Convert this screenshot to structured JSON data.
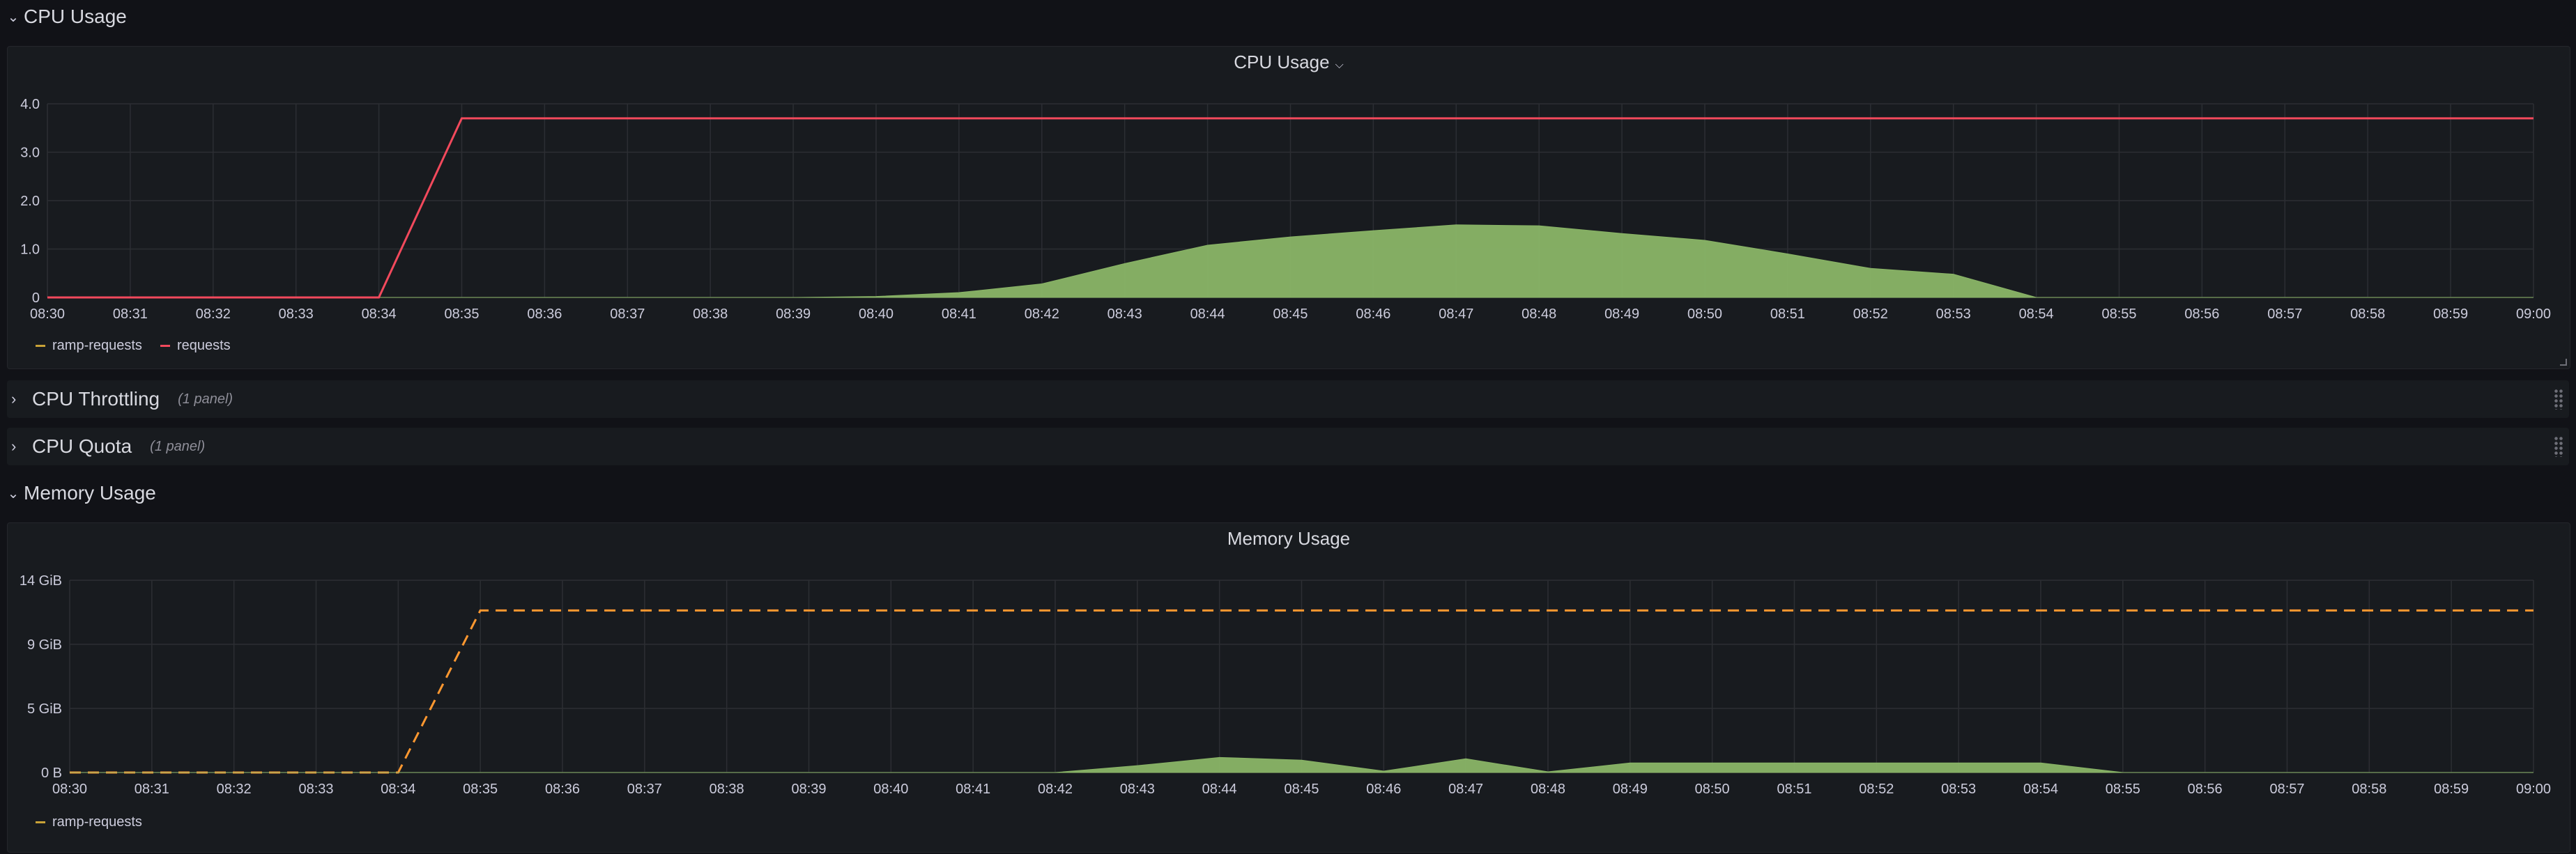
{
  "rows": {
    "cpu_usage": {
      "title": "CPU Usage",
      "chevron": "chevron-down-icon"
    },
    "cpu_throttling": {
      "title": "CPU Throttling",
      "count": "(1 panel)",
      "chevron": "chevron-right-icon"
    },
    "cpu_quota": {
      "title": "CPU Quota",
      "count": "(1 panel)",
      "chevron": "chevron-right-icon"
    },
    "memory_usage": {
      "title": "Memory Usage",
      "chevron": "chevron-down-icon"
    }
  },
  "panels": {
    "cpu": {
      "title": "CPU Usage",
      "menu_icon": "chevron-down-icon"
    },
    "memory": {
      "title": "Memory Usage"
    }
  },
  "colors": {
    "background": "#111217",
    "panel": "#181b1f",
    "grid": "#2c2e33",
    "requests_line": "#f2495c",
    "ramp_area": "#8ab567",
    "memory_requests": "#ff9830",
    "legend_ramp": "#c8a237"
  },
  "chart_data": [
    {
      "type": "area",
      "title": "CPU Usage",
      "x": [
        "08:30",
        "08:31",
        "08:32",
        "08:33",
        "08:34",
        "08:35",
        "08:36",
        "08:37",
        "08:38",
        "08:39",
        "08:40",
        "08:41",
        "08:42",
        "08:43",
        "08:44",
        "08:45",
        "08:46",
        "08:47",
        "08:48",
        "08:49",
        "08:50",
        "08:51",
        "08:52",
        "08:53",
        "08:54",
        "08:55",
        "08:56",
        "08:57",
        "08:58",
        "08:59",
        "09:00"
      ],
      "yticks": [
        "0",
        "1.0",
        "2.0",
        "3.0",
        "4.0"
      ],
      "ylim": [
        0,
        4
      ],
      "grid": true,
      "legend_position": "bottom-left",
      "series": [
        {
          "name": "ramp-requests",
          "style": "area",
          "color": "#8ab567",
          "values": [
            0,
            0,
            0,
            0,
            0,
            0,
            0,
            0,
            0,
            0,
            0.02,
            0.1,
            0.28,
            0.7,
            1.08,
            1.25,
            1.38,
            1.5,
            1.48,
            1.32,
            1.18,
            0.9,
            0.6,
            0.48,
            0,
            0,
            0,
            0,
            0,
            0,
            0
          ]
        },
        {
          "name": "requests",
          "style": "line",
          "color": "#f2495c",
          "values": [
            0,
            0,
            0,
            0,
            0,
            3.7,
            3.7,
            3.7,
            3.7,
            3.7,
            3.7,
            3.7,
            3.7,
            3.7,
            3.7,
            3.7,
            3.7,
            3.7,
            3.7,
            3.7,
            3.7,
            3.7,
            3.7,
            3.7,
            3.7,
            3.7,
            3.7,
            3.7,
            3.7,
            3.7,
            3.7
          ]
        }
      ],
      "legend": [
        {
          "name": "ramp-requests",
          "color": "#c8a237"
        },
        {
          "name": "requests",
          "color": "#f2495c"
        }
      ]
    },
    {
      "type": "area",
      "title": "Memory Usage",
      "x": [
        "08:30",
        "08:31",
        "08:32",
        "08:33",
        "08:34",
        "08:35",
        "08:36",
        "08:37",
        "08:38",
        "08:39",
        "08:40",
        "08:41",
        "08:42",
        "08:43",
        "08:44",
        "08:45",
        "08:46",
        "08:47",
        "08:48",
        "08:49",
        "08:50",
        "08:51",
        "08:52",
        "08:53",
        "08:54",
        "08:55",
        "08:56",
        "08:57",
        "08:58",
        "08:59",
        "09:00"
      ],
      "yticks": [
        "0 B",
        "5 GiB",
        "9 GiB",
        "14 GiB"
      ],
      "ylim": [
        0,
        14
      ],
      "grid": true,
      "legend_position": "bottom-left",
      "series": [
        {
          "name": "ramp-requests",
          "style": "dashed-line",
          "color": "#ff9830",
          "values": [
            0,
            0,
            0,
            0,
            0,
            11.8,
            11.8,
            11.8,
            11.8,
            11.8,
            11.8,
            11.8,
            11.8,
            11.8,
            11.8,
            11.8,
            11.8,
            11.8,
            11.8,
            11.8,
            11.8,
            11.8,
            11.8,
            11.8,
            11.8,
            11.8,
            11.8,
            11.8,
            11.8,
            11.8,
            11.8
          ]
        },
        {
          "name": "",
          "style": "area",
          "color": "#8ab567",
          "values": [
            0,
            0,
            0,
            0,
            0,
            0,
            0,
            0,
            0,
            0,
            0,
            0,
            0,
            0.5,
            1.1,
            0.9,
            0.1,
            1.0,
            0.05,
            0.7,
            0.7,
            0.7,
            0.7,
            0.7,
            0.7,
            0,
            0,
            0,
            0,
            0,
            0
          ]
        }
      ],
      "legend": [
        {
          "name": "ramp-requests",
          "color": "#c8a237"
        }
      ]
    }
  ]
}
